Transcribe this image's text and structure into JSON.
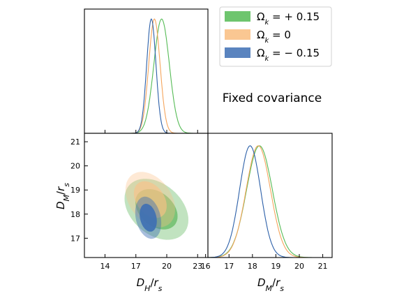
{
  "chart_data": {
    "type": "triangle-contour",
    "annotation": "Fixed covariance",
    "parameters": [
      "D_H/r_s",
      "D_M/r_s"
    ],
    "x_axis": {
      "label": "D_H/r_s",
      "label_main": "D",
      "label_sub": "H",
      "label_den": "r",
      "label_den_sub": "s",
      "range": [
        12.0,
        24.0
      ],
      "ticks": [
        14,
        17,
        20,
        23
      ],
      "tick_labels": [
        "14",
        "17",
        "20",
        "23"
      ]
    },
    "y_axis": {
      "label": "D_M/r_s",
      "label_main": "D",
      "label_sub": "M",
      "label_den": "r",
      "label_den_sub": "s",
      "range": [
        16.2,
        21.35
      ],
      "ticks": [
        17,
        18,
        19,
        20,
        21
      ],
      "tick_labels": [
        "17",
        "18",
        "19",
        "20",
        "21"
      ]
    },
    "dm_axis": {
      "label": "D_M/r_s",
      "label_main": "D",
      "label_sub": "M",
      "label_den": "r",
      "label_den_sub": "s",
      "range": [
        16.1,
        21.4
      ],
      "ticks": [
        16,
        17,
        18,
        19,
        20,
        21
      ],
      "tick_labels": [
        "16",
        "17",
        "18",
        "19",
        "20",
        "21"
      ]
    },
    "legend": {
      "position": "top-right",
      "entries": [
        {
          "label": "Ωk = +0.15",
          "main": "Ω",
          "sub": "k",
          "rest": " = + 0.15",
          "color": "#55bb55"
        },
        {
          "label": "Ωk = 0",
          "main": "Ω",
          "sub": "k",
          "rest": " = 0",
          "color": "#f9bd7f"
        },
        {
          "label": "Ωk = −0.15",
          "main": "Ω",
          "sub": "k",
          "rest": " = − 0.15",
          "color": "#3d6fb4"
        }
      ]
    },
    "series": [
      {
        "name": "Ωk = +0.15",
        "line_color": "#55bb55",
        "fill_color": "#4daf4a",
        "dh_peak": 19.5,
        "dh_sigma": 0.75,
        "dm_peak": 18.3,
        "dm_sigma": 0.55,
        "contour_center": [
          19.0,
          18.2
        ],
        "contour_rho": -0.35,
        "sd_dh": 1.35,
        "sd_dm": 0.55
      },
      {
        "name": "Ωk = 0",
        "line_color": "#f5a55c",
        "fill_color": "#fdc086",
        "dh_peak": 18.8,
        "dh_sigma": 0.55,
        "dm_peak": 18.25,
        "dm_sigma": 0.52,
        "contour_center": [
          18.4,
          18.6
        ],
        "contour_rho": -0.35,
        "sd_dh": 1.05,
        "sd_dm": 0.5
      },
      {
        "name": "Ωk = −0.15",
        "line_color": "#2b5fa8",
        "fill_color": "#3d6fb4",
        "dh_peak": 18.5,
        "dh_sigma": 0.45,
        "dm_peak": 17.9,
        "dm_sigma": 0.45,
        "contour_center": [
          18.2,
          17.85
        ],
        "contour_rho": -0.25,
        "sd_dh": 0.55,
        "sd_dm": 0.38
      }
    ]
  }
}
